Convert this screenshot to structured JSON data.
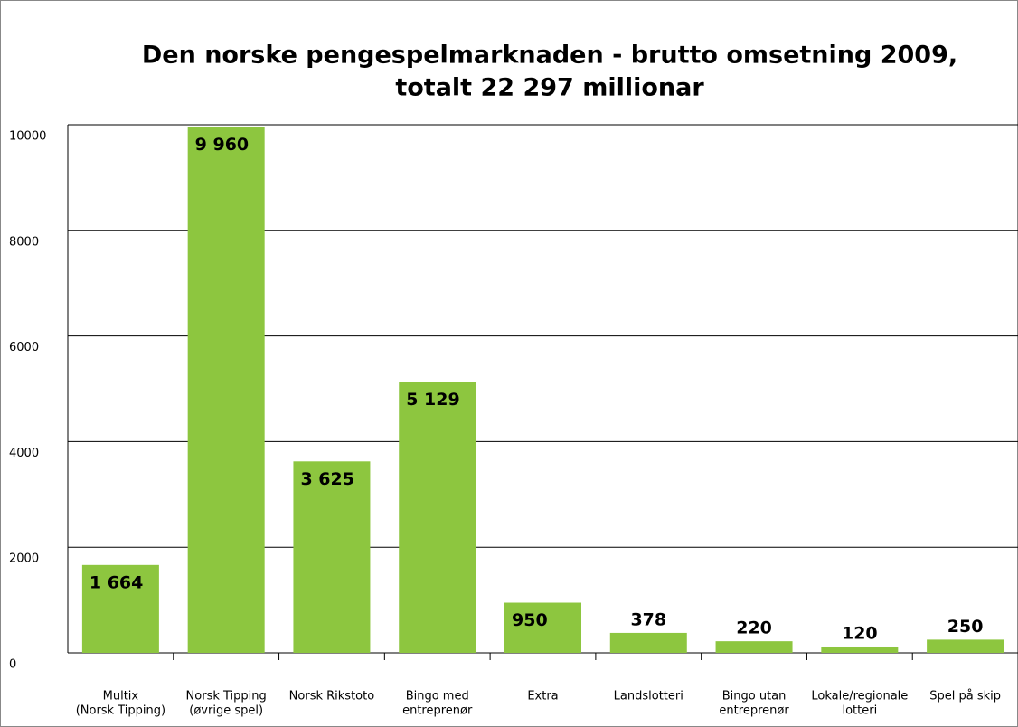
{
  "chart_data": {
    "type": "bar",
    "title": [
      "Den norske pengespelmarknaden - brutto omsetning 2009,",
      "totalt 22 297 millionar"
    ],
    "categories": [
      [
        "Multix",
        "(Norsk Tipping)"
      ],
      [
        "Norsk Tipping",
        "(øvrige spel)"
      ],
      [
        "Norsk Rikstoto"
      ],
      [
        "Bingo med",
        "entreprenør"
      ],
      [
        "Extra"
      ],
      [
        "Landslotteri"
      ],
      [
        "Bingo utan",
        "entreprenør"
      ],
      [
        "Lokale/regionale",
        "lotteri"
      ],
      [
        "Spel på skip"
      ]
    ],
    "values": [
      1664,
      9960,
      3625,
      5129,
      950,
      378,
      220,
      120,
      250
    ],
    "value_labels": [
      "1 664",
      "9 960",
      "3 625",
      "5 129",
      "950",
      "378",
      "220",
      "120",
      "250"
    ],
    "color": "#8dc63f",
    "ylim": [
      0,
      10000
    ],
    "yticks": [
      0,
      2000,
      4000,
      6000,
      8000,
      10000
    ],
    "grid": true
  }
}
